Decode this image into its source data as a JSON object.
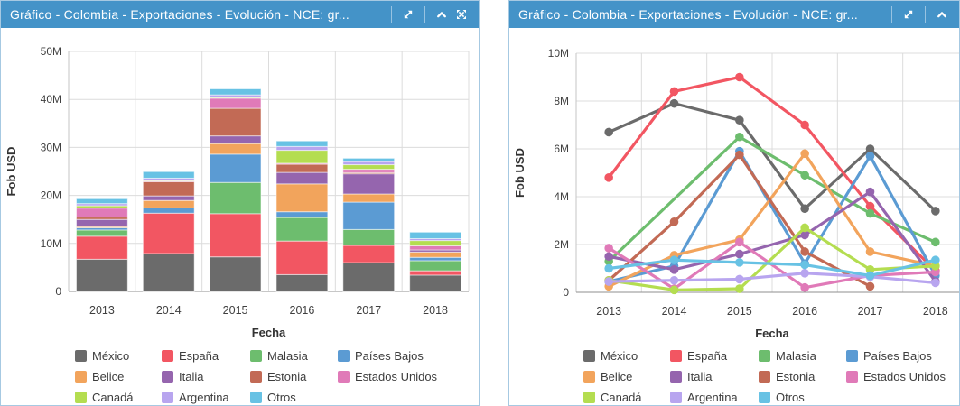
{
  "panels": [
    {
      "title": "Gráfico - Colombia - Exportaciones - Evolución - NCE: gr...",
      "toolbar": [
        "separator",
        "expand-icon",
        "separator",
        "collapse-icon",
        "fullscreen-icon"
      ]
    },
    {
      "title": "Gráfico - Colombia - Exportaciones - Evolución - NCE: gr...",
      "toolbar": [
        "separator",
        "expand-icon",
        "separator",
        "collapse-icon"
      ]
    }
  ],
  "colors": {
    "header": "#4493c8",
    "panel_border": "#a6c9e2",
    "grid": "#dcdcdc",
    "x_axis": "#8f8f8f",
    "y_axis": "#c6c6c6",
    "tick_text": "#3f3f3f",
    "axis_title_text": "#333333",
    "legend_text": "#3d3d3d"
  },
  "legend": {
    "items": [
      {
        "label": "México",
        "color": "#6b6b6b"
      },
      {
        "label": "España",
        "color": "#f25662"
      },
      {
        "label": "Malasia",
        "color": "#6dbd6e"
      },
      {
        "label": "Países Bajos",
        "color": "#5b9bd3"
      },
      {
        "label": "Belice",
        "color": "#f2a45c"
      },
      {
        "label": "Italia",
        "color": "#9565ae"
      },
      {
        "label": "Estonia",
        "color": "#c26a55"
      },
      {
        "label": "Estados Unidos",
        "color": "#e07ab8"
      },
      {
        "label": "Canadá",
        "color": "#b4dd50"
      },
      {
        "label": "Argentina",
        "color": "#b8a5ef"
      },
      {
        "label": "Otros",
        "color": "#68c2e4"
      }
    ]
  },
  "chart_data": [
    {
      "type": "bar",
      "variant": "stacked-column",
      "title": "",
      "xlabel": "Fecha",
      "ylabel": "Fob USD",
      "unit": "USD (values in millions, read from axis)",
      "categories": [
        "2013",
        "2014",
        "2015",
        "2016",
        "2017",
        "2018"
      ],
      "ylim_m": [
        0,
        50
      ],
      "yticks_m": [
        0,
        10,
        20,
        30,
        40,
        50
      ],
      "ytick_labels": [
        "0",
        "10M",
        "20M",
        "30M",
        "40M",
        "50M"
      ],
      "grid": true,
      "legend_position": "bottom",
      "series": [
        {
          "name": "México",
          "color": "#6b6b6b",
          "values": [
            6.7,
            7.9,
            7.2,
            3.5,
            6.0,
            3.4
          ]
        },
        {
          "name": "España",
          "color": "#f25662",
          "values": [
            4.8,
            8.4,
            9.0,
            7.0,
            3.6,
            0.9
          ]
        },
        {
          "name": "Malasia",
          "color": "#6dbd6e",
          "values": [
            1.3,
            null,
            6.5,
            4.9,
            3.3,
            2.1
          ]
        },
        {
          "name": "Países Bajos",
          "color": "#5b9bd3",
          "values": [
            0.45,
            1.1,
            5.9,
            1.2,
            5.7,
            0.7
          ]
        },
        {
          "name": "Belice",
          "color": "#f2a45c",
          "values": [
            0.25,
            1.55,
            2.2,
            5.8,
            1.7,
            1.1
          ]
        },
        {
          "name": "Italia",
          "color": "#9565ae",
          "values": [
            1.5,
            0.95,
            1.6,
            2.4,
            4.2,
            0.45
          ]
        },
        {
          "name": "Estonia",
          "color": "#c26a55",
          "values": [
            0.5,
            2.95,
            5.75,
            1.7,
            0.25,
            null
          ]
        },
        {
          "name": "Estados Unidos",
          "color": "#e07ab8",
          "values": [
            1.85,
            0.15,
            2.1,
            0.2,
            0.7,
            0.85
          ]
        },
        {
          "name": "Canadá",
          "color": "#b4dd50",
          "values": [
            0.5,
            0.1,
            0.15,
            2.7,
            0.95,
            1.1
          ]
        },
        {
          "name": "Argentina",
          "color": "#b8a5ef",
          "values": [
            0.45,
            0.5,
            0.55,
            0.8,
            0.65,
            0.4
          ]
        },
        {
          "name": "Otros",
          "color": "#68c2e4",
          "values": [
            1.0,
            1.35,
            1.25,
            1.15,
            0.7,
            1.35
          ]
        }
      ]
    },
    {
      "type": "line",
      "title": "",
      "xlabel": "Fecha",
      "ylabel": "Fob USD",
      "unit": "USD (values in millions, read from axis)",
      "categories": [
        "2013",
        "2014",
        "2015",
        "2016",
        "2017",
        "2018"
      ],
      "ylim_m": [
        0,
        10
      ],
      "yticks_m": [
        0,
        2,
        4,
        6,
        8,
        10
      ],
      "ytick_labels": [
        "0",
        "2M",
        "4M",
        "6M",
        "8M",
        "10M"
      ],
      "grid": true,
      "legend_position": "bottom",
      "series": [
        {
          "name": "México",
          "color": "#6b6b6b",
          "values": [
            6.7,
            7.9,
            7.2,
            3.5,
            6.0,
            3.4
          ]
        },
        {
          "name": "España",
          "color": "#f25662",
          "values": [
            4.8,
            8.4,
            9.0,
            7.0,
            3.6,
            0.9
          ]
        },
        {
          "name": "Malasia",
          "color": "#6dbd6e",
          "values": [
            1.3,
            null,
            6.5,
            4.9,
            3.3,
            2.1
          ]
        },
        {
          "name": "Países Bajos",
          "color": "#5b9bd3",
          "values": [
            0.45,
            1.1,
            5.9,
            1.2,
            5.7,
            0.7
          ]
        },
        {
          "name": "Belice",
          "color": "#f2a45c",
          "values": [
            0.25,
            1.55,
            2.2,
            5.8,
            1.7,
            1.1
          ]
        },
        {
          "name": "Italia",
          "color": "#9565ae",
          "values": [
            1.5,
            0.95,
            1.6,
            2.4,
            4.2,
            0.45
          ]
        },
        {
          "name": "Estonia",
          "color": "#c26a55",
          "values": [
            0.5,
            2.95,
            5.75,
            1.7,
            0.25,
            null
          ]
        },
        {
          "name": "Estados Unidos",
          "color": "#e07ab8",
          "values": [
            1.85,
            0.15,
            2.1,
            0.2,
            0.7,
            0.85
          ]
        },
        {
          "name": "Canadá",
          "color": "#b4dd50",
          "values": [
            0.5,
            0.1,
            0.15,
            2.7,
            0.95,
            1.1
          ]
        },
        {
          "name": "Argentina",
          "color": "#b8a5ef",
          "values": [
            0.45,
            0.5,
            0.55,
            0.8,
            0.65,
            0.4
          ]
        },
        {
          "name": "Otros",
          "color": "#68c2e4",
          "values": [
            1.0,
            1.35,
            1.25,
            1.15,
            0.7,
            1.35
          ]
        }
      ]
    }
  ]
}
